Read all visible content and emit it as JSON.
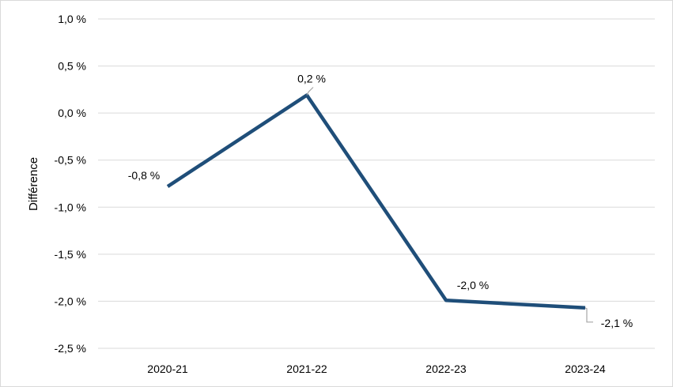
{
  "chart_data": {
    "type": "line",
    "title": "",
    "xlabel": "",
    "ylabel": "Différence",
    "categories": [
      "2020-21",
      "2021-22",
      "2022-23",
      "2023-24"
    ],
    "series": [
      {
        "values": [
          -0.78,
          0.19,
          -1.99,
          -2.07
        ],
        "data_labels": [
          "-0,8 %",
          "0,2 %",
          "-2,0 %",
          "-2,1 %"
        ],
        "color": "#1f4e79"
      }
    ],
    "y_ticks": [
      1.0,
      0.5,
      0.0,
      -0.5,
      -1.0,
      -1.5,
      -2.0,
      -2.5
    ],
    "y_tick_labels": [
      "1,0 %",
      "0,5 %",
      "0,0 %",
      "-0,5 %",
      "-1,0 %",
      "-1,5 %",
      "-2,0 %",
      "-2,5 %"
    ],
    "ylim": [
      -2.5,
      1.0
    ],
    "grid": true,
    "legend": "none",
    "gridline_color": "#d9d9d9",
    "leader_line_color": "#a6a6a6"
  }
}
